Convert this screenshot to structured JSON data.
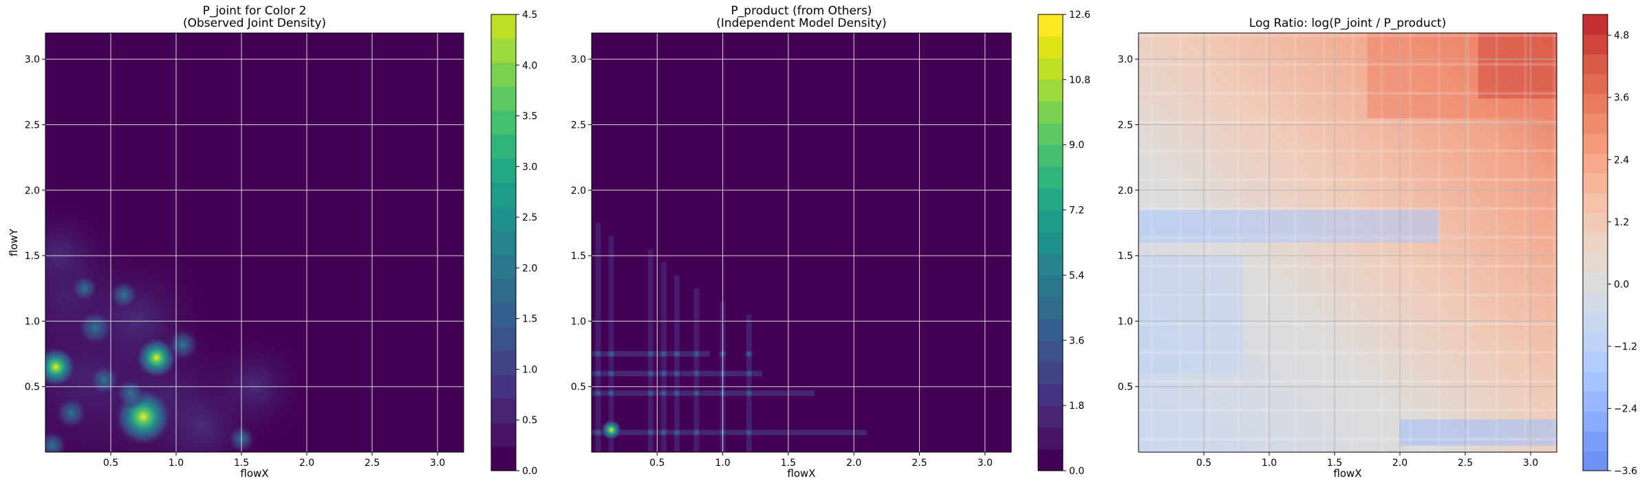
{
  "chart_data": [
    {
      "type": "heatmap",
      "title": "P_joint for Color 2\n(Observed Joint Density)",
      "xlabel": "flowX",
      "ylabel": "flowY",
      "xlim": [
        0.0,
        3.2
      ],
      "ylim": [
        0.0,
        3.2
      ],
      "xticks": [
        "0.5",
        "1.0",
        "1.5",
        "2.0",
        "2.5",
        "3.0"
      ],
      "yticks": [
        "0.5",
        "1.0",
        "1.5",
        "2.0",
        "2.5",
        "3.0"
      ],
      "colormap": "viridis",
      "grid": true,
      "colorbar": {
        "min": 0.0,
        "max": 4.5,
        "ticks": [
          "0.0",
          "0.5",
          "1.0",
          "1.5",
          "2.0",
          "2.5",
          "3.0",
          "3.5",
          "4.0",
          "4.5"
        ]
      },
      "hotspots": [
        {
          "x": 0.75,
          "y": 0.27,
          "value": 4.3
        },
        {
          "x": 0.85,
          "y": 0.72,
          "value": 2.5
        },
        {
          "x": 0.38,
          "y": 0.95,
          "value": 2.0
        },
        {
          "x": 0.08,
          "y": 0.65,
          "value": 2.4
        },
        {
          "x": 1.05,
          "y": 0.82,
          "value": 1.6
        },
        {
          "x": 0.2,
          "y": 0.3,
          "value": 1.5
        },
        {
          "x": 0.45,
          "y": 0.55,
          "value": 1.4
        },
        {
          "x": 0.65,
          "y": 0.45,
          "value": 1.3
        },
        {
          "x": 0.3,
          "y": 1.25,
          "value": 0.9
        },
        {
          "x": 0.6,
          "y": 1.2,
          "value": 1.2
        },
        {
          "x": 1.5,
          "y": 0.1,
          "value": 1.0
        },
        {
          "x": 0.05,
          "y": 0.05,
          "value": 1.4
        }
      ]
    },
    {
      "type": "heatmap",
      "title": "P_product (from Others)\n(Independent Model Density)",
      "xlabel": "flowX",
      "ylabel": "",
      "xlim": [
        0.0,
        3.2
      ],
      "ylim": [
        0.0,
        3.2
      ],
      "xticks": [
        "0.5",
        "1.0",
        "1.5",
        "2.0",
        "2.5",
        "3.0"
      ],
      "yticks": [
        "0.5",
        "1.0",
        "1.5",
        "2.0",
        "2.5",
        "3.0"
      ],
      "colormap": "viridis",
      "grid": true,
      "colorbar": {
        "min": 0.0,
        "max": 12.6,
        "ticks": [
          "0.0",
          "1.8",
          "3.6",
          "5.4",
          "7.2",
          "9.0",
          "10.8",
          "12.6"
        ]
      },
      "marginal_x": [
        0.05,
        0.15,
        0.45,
        0.55,
        0.65,
        0.8,
        1.0,
        1.2
      ],
      "marginal_y": [
        0.15,
        0.45,
        0.6,
        0.75
      ],
      "peak": {
        "x": 0.15,
        "y": 0.17,
        "value": 12.0
      }
    },
    {
      "type": "heatmap",
      "title": "Log Ratio: log(P_joint / P_product)",
      "xlabel": "flowX",
      "ylabel": "",
      "xlim": [
        0.0,
        3.2
      ],
      "ylim": [
        0.0,
        3.2
      ],
      "xticks": [
        "0.5",
        "1.0",
        "1.5",
        "2.0",
        "2.5",
        "3.0"
      ],
      "yticks": [
        "0.5",
        "1.0",
        "1.5",
        "2.0",
        "2.5",
        "3.0"
      ],
      "colormap": "coolwarm",
      "grid": true,
      "colorbar": {
        "min": -3.6,
        "max": 5.2,
        "ticks": [
          "−3.6",
          "−2.4",
          "−1.2",
          "0.0",
          "1.2",
          "2.4",
          "3.6",
          "4.8"
        ]
      },
      "trend": "negative near origin and along y≈1.7 band, strongly positive toward upper-right (x>2.5, y>2.7)"
    }
  ]
}
